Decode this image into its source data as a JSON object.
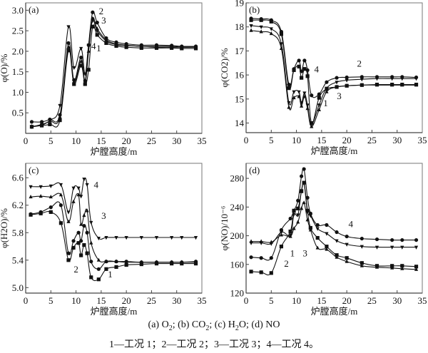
{
  "figure": {
    "caption_line1": [
      "(a) O",
      "2",
      "; (b) CO",
      "2",
      "; (c) H",
      "2",
      "O; (d) NO"
    ],
    "caption_line2": "1—工况 1；2—工况 2；3—工况 3；4—工况 4。"
  },
  "chart_data": [
    {
      "type": "line",
      "panel_label": "(a)",
      "title": "",
      "xlabel": "炉膛高度/m",
      "ylabel": "φ(O)/%",
      "xlim": [
        0,
        35
      ],
      "ylim": [
        0,
        3.18
      ],
      "xticks": [
        0,
        5,
        10,
        15,
        20,
        25,
        30,
        35
      ],
      "yticks": [
        0.5,
        1.0,
        1.5,
        2.0,
        2.5,
        3.0
      ],
      "ytick_labels": [
        "0.5",
        "1.0",
        "1.5",
        "2.0",
        "2.5",
        "3.0"
      ],
      "grid": false,
      "series": [
        {
          "name": "1",
          "marker": "square",
          "x": [
            1.2,
            3.2,
            4.8,
            6.8,
            8.5,
            9.6,
            11.0,
            11.8,
            12.5,
            13.3,
            14.2,
            16.0,
            18.0,
            20.0,
            23.0,
            26.0,
            29.0,
            31.0,
            33.8
          ],
          "y": [
            0.16,
            0.19,
            0.22,
            0.32,
            2.02,
            1.2,
            1.65,
            1.2,
            1.55,
            2.6,
            2.4,
            2.2,
            2.13,
            2.1,
            2.08,
            2.08,
            2.08,
            2.07,
            2.07
          ]
        },
        {
          "name": "2",
          "marker": "circle",
          "x": [
            1.2,
            3.2,
            4.8,
            6.8,
            8.5,
            9.6,
            11.0,
            11.8,
            12.5,
            13.3,
            14.2,
            16.0,
            18.0,
            20.0,
            23.0,
            26.0,
            29.0,
            31.0,
            33.8
          ],
          "y": [
            0.28,
            0.28,
            0.34,
            0.45,
            2.2,
            1.3,
            1.85,
            1.28,
            2.15,
            2.95,
            2.7,
            2.32,
            2.22,
            2.18,
            2.15,
            2.15,
            2.14,
            2.12,
            2.12
          ]
        },
        {
          "name": "3",
          "marker": "triangle-up",
          "x": [
            1.2,
            3.2,
            4.8,
            6.8,
            8.5,
            9.6,
            11.0,
            11.8,
            12.5,
            13.3,
            14.2,
            16.0,
            18.0,
            20.0,
            23.0,
            26.0,
            29.0,
            31.0,
            33.8
          ],
          "y": [
            0.17,
            0.2,
            0.3,
            0.4,
            2.1,
            1.25,
            1.75,
            1.22,
            2.0,
            2.8,
            2.55,
            2.28,
            2.18,
            2.15,
            2.12,
            2.12,
            2.12,
            2.1,
            2.1
          ]
        },
        {
          "name": "4",
          "marker": "triangle-down",
          "x": [
            1.2,
            3.2,
            4.8,
            6.8,
            8.5,
            9.6,
            11.0,
            11.8,
            12.5,
            13.3,
            14.2,
            16.0,
            18.0,
            20.0,
            23.0,
            26.0,
            29.0,
            31.0,
            33.8
          ],
          "y": [
            0.16,
            0.22,
            0.32,
            0.68,
            2.6,
            1.6,
            2.07,
            1.45,
            2.15,
            2.75,
            2.5,
            2.25,
            2.16,
            2.14,
            2.12,
            2.1,
            2.1,
            2.1,
            2.1
          ]
        }
      ],
      "annotations": [
        {
          "text": "1",
          "x": 14.5,
          "y": 2.0
        },
        {
          "text": "2",
          "x": 15.0,
          "y": 2.9
        },
        {
          "text": "3",
          "x": 15.5,
          "y": 2.68
        },
        {
          "text": "4",
          "x": 13.5,
          "y": 2.05
        }
      ]
    },
    {
      "type": "line",
      "panel_label": "(b)",
      "title": "",
      "xlabel": "炉膛高度/m",
      "ylabel": "φ(CO2)/%",
      "xlim": [
        0,
        35
      ],
      "ylim": [
        13.6,
        19
      ],
      "xticks": [
        0,
        5,
        10,
        15,
        20,
        25,
        30,
        35
      ],
      "yticks": [
        14,
        15,
        16,
        17,
        18,
        19
      ],
      "ytick_labels": [
        "14",
        "15",
        "16",
        "17",
        "18",
        "19"
      ],
      "grid": false,
      "series": [
        {
          "name": "1",
          "marker": "triangle-up",
          "x": [
            1.0,
            3.0,
            5.0,
            7.0,
            8.5,
            9.5,
            10.5,
            11.0,
            11.6,
            12.2,
            13.0,
            14.5,
            16.0,
            18.0,
            20.0,
            23.0,
            26.0,
            29.0,
            31.0,
            33.8
          ],
          "y": [
            17.85,
            17.8,
            17.72,
            17.1,
            14.65,
            15.05,
            15.1,
            14.7,
            15.1,
            14.6,
            13.85,
            14.55,
            15.3,
            15.5,
            15.55,
            15.58,
            15.58,
            15.58,
            15.58,
            15.58
          ]
        },
        {
          "name": "2",
          "marker": "circle",
          "x": [
            1.0,
            3.0,
            5.0,
            7.0,
            8.5,
            9.5,
            10.5,
            11.0,
            11.6,
            12.2,
            13.0,
            14.5,
            16.0,
            18.0,
            20.0,
            23.0,
            26.0,
            29.0,
            31.0,
            33.8
          ],
          "y": [
            18.35,
            18.33,
            18.28,
            17.8,
            15.6,
            16.25,
            16.6,
            16.15,
            16.6,
            16.2,
            15.15,
            15.2,
            15.7,
            15.88,
            15.9,
            15.92,
            15.92,
            15.92,
            15.92,
            15.9
          ]
        },
        {
          "name": "3",
          "marker": "square",
          "x": [
            1.0,
            3.0,
            5.0,
            7.0,
            8.5,
            9.5,
            10.5,
            11.0,
            11.6,
            12.2,
            13.0,
            14.5,
            16.0,
            18.0,
            20.0,
            23.0,
            26.0,
            29.0,
            31.0,
            33.8
          ],
          "y": [
            18.28,
            18.28,
            18.22,
            17.7,
            15.45,
            16.2,
            16.35,
            15.88,
            16.25,
            15.95,
            14.0,
            15.05,
            15.42,
            15.5,
            15.55,
            15.58,
            15.6,
            15.6,
            15.6,
            15.6
          ]
        },
        {
          "name": "4",
          "marker": "triangle-down",
          "x": [
            1.0,
            3.0,
            5.0,
            7.0,
            8.5,
            9.5,
            10.5,
            11.0,
            11.6,
            12.2,
            13.0,
            14.5,
            16.0,
            18.0,
            20.0,
            23.0,
            26.0,
            29.0,
            31.0,
            33.8
          ],
          "y": [
            18.05,
            18.0,
            17.92,
            17.3,
            14.85,
            15.3,
            15.3,
            14.85,
            15.25,
            14.75,
            13.95,
            14.75,
            15.45,
            15.7,
            15.78,
            15.82,
            15.85,
            15.85,
            15.85,
            15.85
          ]
        }
      ],
      "annotations": [
        {
          "text": "1",
          "x": 15.8,
          "y": 14.7
        },
        {
          "text": "2",
          "x": 22.5,
          "y": 16.35
        },
        {
          "text": "3",
          "x": 18.5,
          "y": 15.0
        },
        {
          "text": "4",
          "x": 14.0,
          "y": 16.1
        }
      ]
    },
    {
      "type": "line",
      "panel_label": "(c)",
      "title": "",
      "xlabel": "炉膛高度/m",
      "ylabel": "φ(H2O)/%",
      "xlim": [
        0,
        35
      ],
      "ylim": [
        4.92,
        6.81
      ],
      "xticks": [
        0,
        5,
        10,
        15,
        20,
        25,
        30,
        35
      ],
      "yticks": [
        5.0,
        5.4,
        5.8,
        6.2,
        6.6
      ],
      "ytick_labels": [
        "5.0",
        "5.4",
        "5.8",
        "6.2",
        "6.6"
      ],
      "grid": false,
      "series": [
        {
          "name": "1",
          "marker": "square",
          "x": [
            1.0,
            3.0,
            5.0,
            7.0,
            8.5,
            9.5,
            10.5,
            11.0,
            11.6,
            12.2,
            13.0,
            14.5,
            16.0,
            18.0,
            20.0,
            23.0,
            26.0,
            29.0,
            31.0,
            33.8
          ],
          "y": [
            6.06,
            6.08,
            6.1,
            5.94,
            5.4,
            5.58,
            5.65,
            5.47,
            5.62,
            5.5,
            5.15,
            5.12,
            5.27,
            5.3,
            5.33,
            5.34,
            5.35,
            5.35,
            5.35,
            5.35
          ]
        },
        {
          "name": "2",
          "marker": "circle",
          "x": [
            1.0,
            3.0,
            5.0,
            7.0,
            8.5,
            9.5,
            10.5,
            11.0,
            11.6,
            12.2,
            13.0,
            14.5,
            16.0,
            18.0,
            20.0,
            23.0,
            26.0,
            29.0,
            31.0,
            33.8
          ],
          "y": [
            6.07,
            6.1,
            6.17,
            6.2,
            5.5,
            5.68,
            5.8,
            5.68,
            5.9,
            5.8,
            5.38,
            5.27,
            5.38,
            5.38,
            5.38,
            5.37,
            5.37,
            5.37,
            5.37,
            5.38
          ]
        },
        {
          "name": "3",
          "marker": "triangle-up",
          "x": [
            1.0,
            3.0,
            5.0,
            7.0,
            8.5,
            9.5,
            10.5,
            11.0,
            11.6,
            12.2,
            13.0,
            14.5,
            16.0,
            18.0,
            20.0,
            23.0,
            26.0,
            29.0,
            31.0,
            33.8
          ],
          "y": [
            6.32,
            6.33,
            6.32,
            6.35,
            5.96,
            6.25,
            6.35,
            5.92,
            6.05,
            6.12,
            5.65,
            5.4,
            5.38,
            5.38,
            5.37,
            5.37,
            5.37,
            5.37,
            5.37,
            5.37
          ]
        },
        {
          "name": "4",
          "marker": "triangle-down",
          "x": [
            1.0,
            3.0,
            5.0,
            7.0,
            8.5,
            9.5,
            10.5,
            11.0,
            11.6,
            12.2,
            13.0,
            14.5,
            16.0,
            18.0,
            20.0,
            23.0,
            26.0,
            29.0,
            31.0,
            33.8
          ],
          "y": [
            6.47,
            6.47,
            6.48,
            6.5,
            6.1,
            6.45,
            6.45,
            6.33,
            6.58,
            6.5,
            5.95,
            5.72,
            5.73,
            5.73,
            5.73,
            5.73,
            5.73,
            5.73,
            5.73,
            5.73
          ]
        }
      ],
      "annotations": [
        {
          "text": "1",
          "x": 16.8,
          "y": 5.15
        },
        {
          "text": "2",
          "x": 10.0,
          "y": 5.22
        },
        {
          "text": "3",
          "x": 15.5,
          "y": 6.0
        },
        {
          "text": "4",
          "x": 14.0,
          "y": 6.45
        }
      ]
    },
    {
      "type": "line",
      "panel_label": "(d)",
      "title": "",
      "xlabel": "炉膛高度/m",
      "ylabel": "φ(NO)/10⁻⁶",
      "xlim": [
        0,
        35
      ],
      "ylim": [
        120,
        301
      ],
      "xticks": [
        0,
        5,
        10,
        15,
        20,
        25,
        30,
        35
      ],
      "yticks": [
        120,
        160,
        200,
        240,
        280
      ],
      "ytick_labels": [
        "120",
        "160",
        "200",
        "240",
        "280"
      ],
      "grid": false,
      "series": [
        {
          "name": "1",
          "marker": "square",
          "x": [
            1.0,
            3.0,
            5.0,
            7.0,
            8.8,
            9.5,
            10.3,
            11.0,
            11.5,
            12.2,
            12.8,
            14.2,
            16.0,
            18.0,
            20.0,
            23.0,
            26.0,
            29.0,
            31.0,
            33.8
          ],
          "y": [
            150,
            149,
            148,
            185,
            206,
            235,
            238,
            262,
            274,
            235,
            211,
            197,
            185,
            173,
            169,
            162,
            158,
            158,
            158,
            157
          ]
        },
        {
          "name": "2",
          "marker": "circle",
          "x": [
            1.0,
            3.0,
            5.0,
            7.0,
            8.8,
            9.5,
            10.3,
            11.0,
            11.5,
            12.2,
            12.8,
            14.2,
            16.0,
            18.0,
            20.0,
            23.0,
            26.0,
            29.0,
            31.0,
            33.8
          ],
          "y": [
            170,
            169,
            169,
            208,
            224,
            235,
            249,
            283,
            293,
            253,
            231,
            215,
            215,
            205,
            199,
            196,
            195,
            194,
            194,
            194
          ]
        },
        {
          "name": "3",
          "marker": "triangle-up",
          "x": [
            1.0,
            3.0,
            5.0,
            7.0,
            8.8,
            9.5,
            10.3,
            11.0,
            11.5,
            12.2,
            12.8,
            14.2,
            16.0,
            18.0,
            20.0,
            23.0,
            26.0,
            29.0,
            31.0,
            33.8
          ],
          "y": [
            192,
            192,
            191,
            201,
            199,
            210,
            219,
            238,
            246,
            222,
            208,
            183,
            181,
            170,
            164,
            158,
            156,
            155,
            154,
            153
          ]
        },
        {
          "name": "4",
          "marker": "triangle-down",
          "x": [
            1.0,
            3.0,
            5.0,
            7.0,
            8.8,
            9.5,
            10.3,
            11.0,
            11.5,
            12.2,
            12.8,
            14.2,
            16.0,
            18.0,
            20.0,
            23.0,
            26.0,
            29.0,
            31.0,
            33.8
          ],
          "y": [
            190,
            190,
            189,
            205,
            201,
            230,
            229,
            263,
            273,
            233,
            228,
            210,
            203,
            193,
            188,
            185,
            184,
            184,
            184,
            184
          ]
        }
      ],
      "annotations": [
        {
          "text": "1",
          "x": 9.2,
          "y": 171
        },
        {
          "text": "2",
          "x": 8.0,
          "y": 157
        },
        {
          "text": "3",
          "x": 11.7,
          "y": 171
        },
        {
          "text": "4",
          "x": 20.8,
          "y": 212
        }
      ]
    }
  ]
}
